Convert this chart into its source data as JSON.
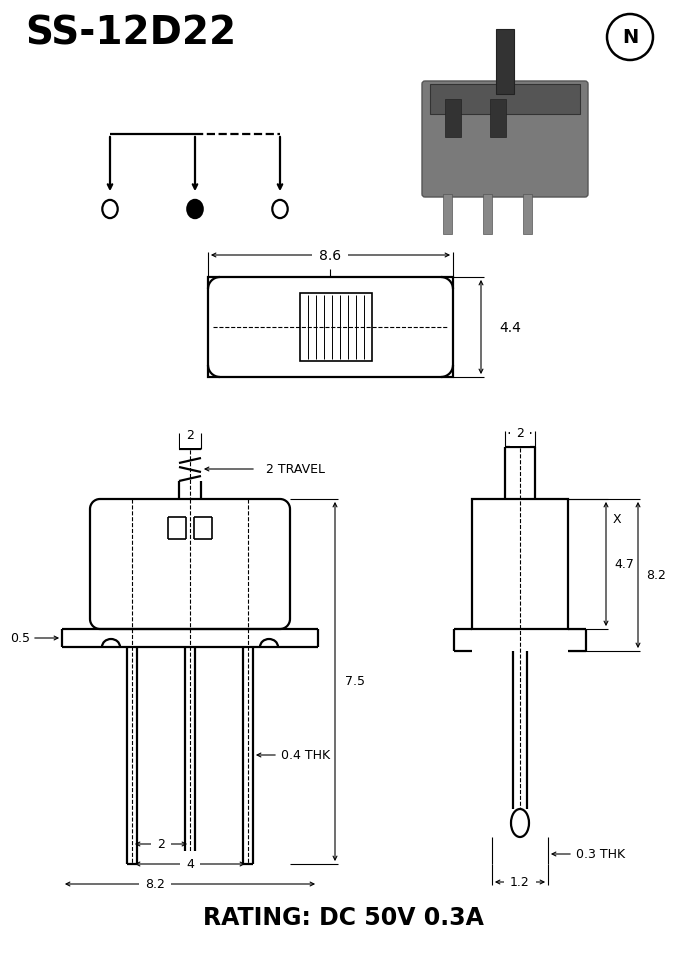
{
  "title": "SS-12D22",
  "rating": "RATING: DC 50V 0.3A",
  "bg_color": "#ffffff",
  "line_color": "#000000",
  "dim_8_6": "8.6",
  "dim_4_4": "4.4",
  "dim_7_5": "7.5",
  "dim_2": "2",
  "dim_2_travel": "2 TRAVEL",
  "dim_0_5": "0.5",
  "dim_0_4thk": "0.4 THK",
  "dim_2b": "2",
  "dim_4": "4",
  "dim_8_2": "8.2",
  "dim_2c": "2",
  "dim_x": "X",
  "dim_4_7": "4.7",
  "dim_8_2b": "8.2",
  "dim_0_3thk": "0.3 THK",
  "dim_1_2": "1.2"
}
